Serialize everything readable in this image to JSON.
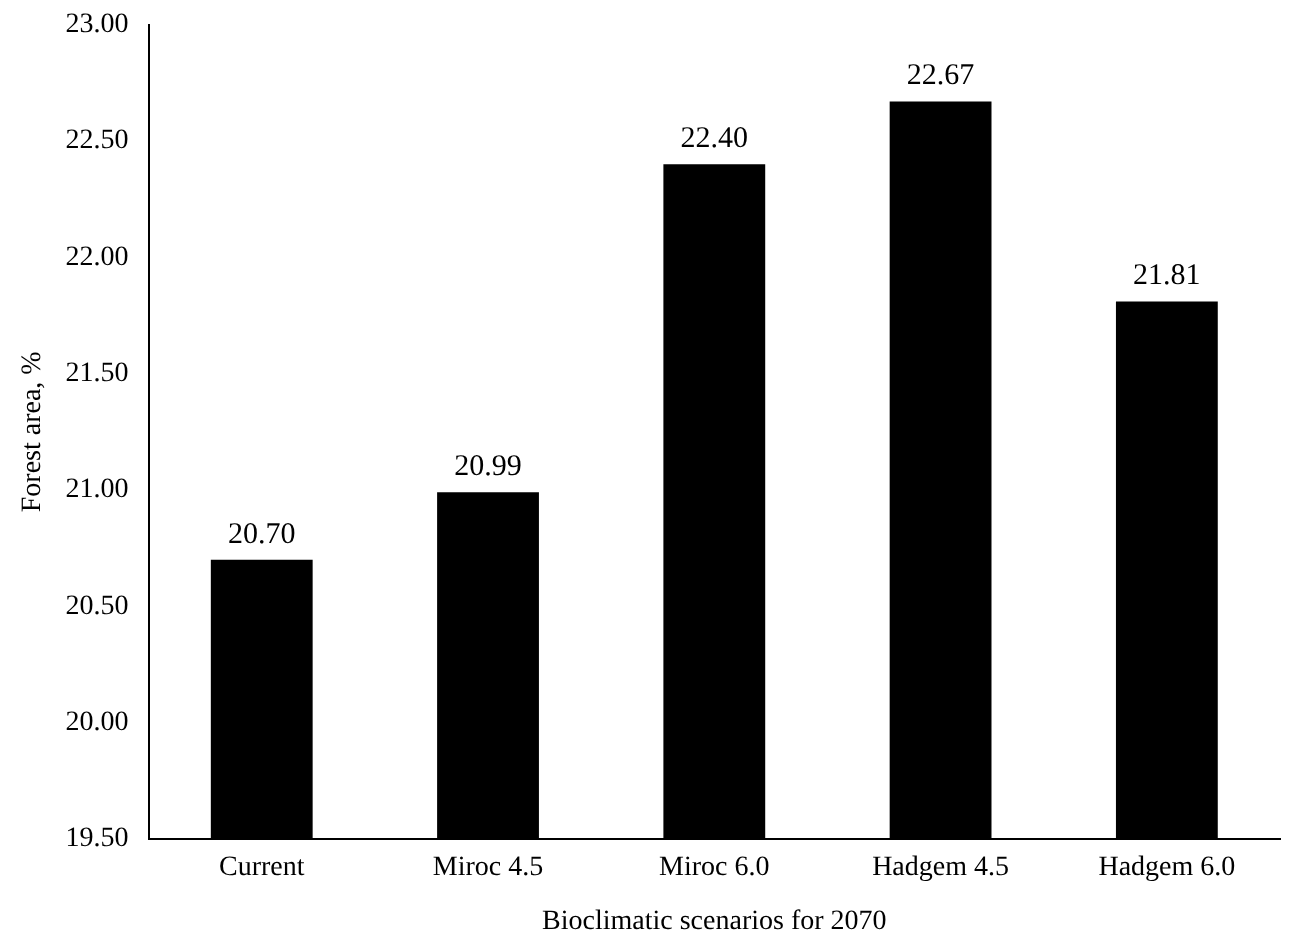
{
  "chart_data": {
    "type": "bar",
    "xlabel": "Bioclimatic scenarios for 2070",
    "ylabel": "Forest area, %",
    "categories": [
      "Current",
      "Miroc 4.5",
      "Miroc 6.0",
      "Hadgem 4.5",
      "Hadgem 6.0"
    ],
    "values": [
      20.7,
      20.99,
      22.4,
      22.67,
      21.81
    ],
    "value_labels": [
      "20.70",
      "20.99",
      "22.40",
      "22.67",
      "21.81"
    ],
    "color": "#000000",
    "ylim": [
      19.5,
      23
    ],
    "yticks": [
      {
        "value": 19.5,
        "label": "19.50"
      },
      {
        "value": 20,
        "label": "20.00"
      },
      {
        "value": 20.5,
        "label": "20.50"
      },
      {
        "value": 21,
        "label": "21.00"
      },
      {
        "value": 21.5,
        "label": "21.50"
      },
      {
        "value": 22,
        "label": "22.00"
      },
      {
        "value": 22.5,
        "label": "22.50"
      },
      {
        "value": 23,
        "label": "23.00"
      }
    ],
    "grid": false,
    "legend": false
  }
}
